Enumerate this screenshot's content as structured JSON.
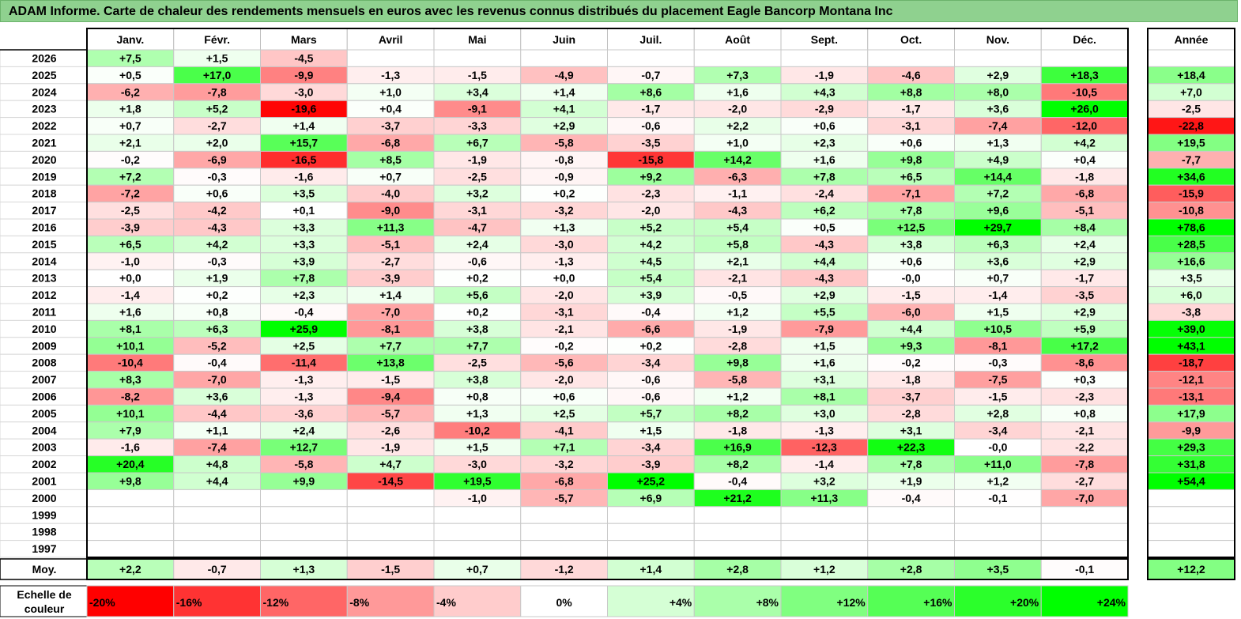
{
  "title": "ADAM Informe. Carte de chaleur des rendements mensuels en euros avec les revenus connus distribués du placement Eagle Bancorp Montana Inc",
  "colors": {
    "negative": "#ff0000",
    "neutral": "#ffffff",
    "positive": "#00ff00",
    "title_bg": "#8fd18f"
  },
  "chart_data": {
    "type": "heatmap",
    "title": "ADAM Informe. Carte de chaleur des rendements mensuels en euros avec les revenus connus distribués du placement Eagle Bancorp Montana Inc",
    "months": [
      "Janv.",
      "Févr.",
      "Mars",
      "Avril",
      "Mai",
      "Juin",
      "Juil.",
      "Août",
      "Sept.",
      "Oct.",
      "Nov.",
      "Déc."
    ],
    "year_header": "Année",
    "rows": [
      {
        "year": "2026",
        "values": [
          "+7,5",
          "+1,5",
          "-4,5",
          "",
          "",
          "",
          "",
          "",
          "",
          "",
          "",
          ""
        ],
        "annual": ""
      },
      {
        "year": "2025",
        "values": [
          "+0,5",
          "+17,0",
          "-9,9",
          "-1,3",
          "-1,5",
          "-4,9",
          "-0,7",
          "+7,3",
          "-1,9",
          "-4,6",
          "+2,9",
          "+18,3"
        ],
        "annual": "+18,4"
      },
      {
        "year": "2024",
        "values": [
          "-6,2",
          "-7,8",
          "-3,0",
          "+1,0",
          "+3,4",
          "+1,4",
          "+8,6",
          "+1,6",
          "+4,3",
          "+8,8",
          "+8,0",
          "-10,5"
        ],
        "annual": "+7,0"
      },
      {
        "year": "2023",
        "values": [
          "+1,8",
          "+5,2",
          "-19,6",
          "+0,4",
          "-9,1",
          "+4,1",
          "-1,7",
          "-2,0",
          "-2,9",
          "-1,7",
          "+3,6",
          "+26,0"
        ],
        "annual": "-2,5"
      },
      {
        "year": "2022",
        "values": [
          "+0,7",
          "-2,7",
          "+1,4",
          "-3,7",
          "-3,3",
          "+2,9",
          "-0,6",
          "+2,2",
          "+0,6",
          "-3,1",
          "-7,4",
          "-12,0"
        ],
        "annual": "-22,8"
      },
      {
        "year": "2021",
        "values": [
          "+2,1",
          "+2,0",
          "+15,7",
          "-6,8",
          "+6,7",
          "-5,8",
          "-3,5",
          "+1,0",
          "+2,3",
          "+0,6",
          "+1,3",
          "+4,2"
        ],
        "annual": "+19,5"
      },
      {
        "year": "2020",
        "values": [
          "-0,2",
          "-6,9",
          "-16,5",
          "+8,5",
          "-1,9",
          "-0,8",
          "-15,8",
          "+14,2",
          "+1,6",
          "+9,8",
          "+4,9",
          "+0,4"
        ],
        "annual": "-7,7"
      },
      {
        "year": "2019",
        "values": [
          "+7,2",
          "-0,3",
          "-1,6",
          "+0,7",
          "-2,5",
          "-0,9",
          "+9,2",
          "-6,3",
          "+7,8",
          "+6,5",
          "+14,4",
          "-1,8"
        ],
        "annual": "+34,6"
      },
      {
        "year": "2018",
        "values": [
          "-7,2",
          "+0,6",
          "+3,5",
          "-4,0",
          "+3,2",
          "+0,2",
          "-2,3",
          "-1,1",
          "-2,4",
          "-7,1",
          "+7,2",
          "-6,8"
        ],
        "annual": "-15,9"
      },
      {
        "year": "2017",
        "values": [
          "-2,5",
          "-4,2",
          "+0,1",
          "-9,0",
          "-3,1",
          "-3,2",
          "-2,0",
          "-4,3",
          "+6,2",
          "+7,8",
          "+9,6",
          "-5,1"
        ],
        "annual": "-10,8"
      },
      {
        "year": "2016",
        "values": [
          "-3,9",
          "-4,3",
          "+3,3",
          "+11,3",
          "-4,7",
          "+1,3",
          "+5,2",
          "+5,4",
          "+0,5",
          "+12,5",
          "+29,7",
          "+8,4"
        ],
        "annual": "+78,6"
      },
      {
        "year": "2015",
        "values": [
          "+6,5",
          "+4,2",
          "+3,3",
          "-5,1",
          "+2,4",
          "-3,0",
          "+4,2",
          "+5,8",
          "-4,3",
          "+3,8",
          "+6,3",
          "+2,4"
        ],
        "annual": "+28,5"
      },
      {
        "year": "2014",
        "values": [
          "-1,0",
          "-0,3",
          "+3,9",
          "-2,7",
          "-0,6",
          "-1,3",
          "+4,5",
          "+2,1",
          "+4,4",
          "+0,6",
          "+3,6",
          "+2,9"
        ],
        "annual": "+16,6"
      },
      {
        "year": "2013",
        "values": [
          "+0,0",
          "+1,9",
          "+7,8",
          "-3,9",
          "+0,2",
          "+0,0",
          "+5,4",
          "-2,1",
          "-4,3",
          "-0,0",
          "+0,7",
          "-1,7"
        ],
        "annual": "+3,5"
      },
      {
        "year": "2012",
        "values": [
          "-1,4",
          "+0,2",
          "+2,3",
          "+1,4",
          "+5,6",
          "-2,0",
          "+3,9",
          "-0,5",
          "+2,9",
          "-1,5",
          "-1,4",
          "-3,5"
        ],
        "annual": "+6,0"
      },
      {
        "year": "2011",
        "values": [
          "+1,6",
          "+0,8",
          "-0,4",
          "-7,0",
          "+0,2",
          "-3,1",
          "-0,4",
          "+1,2",
          "+5,5",
          "-6,0",
          "+1,5",
          "+2,9"
        ],
        "annual": "-3,8"
      },
      {
        "year": "2010",
        "values": [
          "+8,1",
          "+6,3",
          "+25,9",
          "-8,1",
          "+3,8",
          "-2,1",
          "-6,6",
          "-1,9",
          "-7,9",
          "+4,4",
          "+10,5",
          "+5,9"
        ],
        "annual": "+39,0"
      },
      {
        "year": "2009",
        "values": [
          "+10,1",
          "-5,2",
          "+2,5",
          "+7,7",
          "+7,7",
          "-0,2",
          "+0,2",
          "-2,8",
          "+1,5",
          "+9,3",
          "-8,1",
          "+17,2"
        ],
        "annual": "+43,1"
      },
      {
        "year": "2008",
        "values": [
          "-10,4",
          "-0,4",
          "-11,4",
          "+13,8",
          "-2,5",
          "-5,6",
          "-3,4",
          "+9,8",
          "+1,6",
          "-0,2",
          "-0,3",
          "-8,6"
        ],
        "annual": "-18,7"
      },
      {
        "year": "2007",
        "values": [
          "+8,3",
          "-7,0",
          "-1,3",
          "-1,5",
          "+3,8",
          "-2,0",
          "-0,6",
          "-5,8",
          "+3,1",
          "-1,8",
          "-7,5",
          "+0,3"
        ],
        "annual": "-12,1"
      },
      {
        "year": "2006",
        "values": [
          "-8,2",
          "+3,6",
          "-1,3",
          "-9,4",
          "+0,8",
          "+0,6",
          "-0,6",
          "+1,2",
          "+8,1",
          "-3,7",
          "-1,5",
          "-2,3"
        ],
        "annual": "-13,1"
      },
      {
        "year": "2005",
        "values": [
          "+10,1",
          "-4,4",
          "-3,6",
          "-5,7",
          "+1,3",
          "+2,5",
          "+5,7",
          "+8,2",
          "+3,0",
          "-2,8",
          "+2,8",
          "+0,8"
        ],
        "annual": "+17,9"
      },
      {
        "year": "2004",
        "values": [
          "+7,9",
          "+1,1",
          "+2,4",
          "-2,6",
          "-10,2",
          "-4,1",
          "+1,5",
          "-1,8",
          "-1,3",
          "+3,1",
          "-3,4",
          "-2,1"
        ],
        "annual": "-9,9"
      },
      {
        "year": "2003",
        "values": [
          "-1,6",
          "-7,4",
          "+12,7",
          "-1,9",
          "+1,5",
          "+7,1",
          "-3,4",
          "+16,9",
          "-12,3",
          "+22,3",
          "-0,0",
          "-2,2"
        ],
        "annual": "+29,3"
      },
      {
        "year": "2002",
        "values": [
          "+20,4",
          "+4,8",
          "-5,8",
          "+4,7",
          "-3,0",
          "-3,2",
          "-3,9",
          "+8,2",
          "-1,4",
          "+7,8",
          "+11,0",
          "-7,8"
        ],
        "annual": "+31,8"
      },
      {
        "year": "2001",
        "values": [
          "+9,8",
          "+4,4",
          "+9,9",
          "-14,5",
          "+19,5",
          "-6,8",
          "+25,2",
          "-0,4",
          "+3,2",
          "+1,9",
          "+1,2",
          "-2,7"
        ],
        "annual": "+54,4"
      },
      {
        "year": "2000",
        "values": [
          "",
          "",
          "",
          "",
          "-1,0",
          "-5,7",
          "+6,9",
          "+21,2",
          "+11,3",
          "-0,4",
          "-0,1",
          "-7,0"
        ],
        "annual": ""
      },
      {
        "year": "1999",
        "values": [
          "",
          "",
          "",
          "",
          "",
          "",
          "",
          "",
          "",
          "",
          "",
          ""
        ],
        "annual": ""
      },
      {
        "year": "1998",
        "values": [
          "",
          "",
          "",
          "",
          "",
          "",
          "",
          "",
          "",
          "",
          "",
          ""
        ],
        "annual": ""
      },
      {
        "year": "1997",
        "values": [
          "",
          "",
          "",
          "",
          "",
          "",
          "",
          "",
          "",
          "",
          "",
          ""
        ],
        "annual": ""
      }
    ],
    "average": {
      "label": "Moy.",
      "values": [
        "+2,2",
        "-0,7",
        "+1,3",
        "-1,5",
        "+0,7",
        "-1,2",
        "+1,4",
        "+2,8",
        "+1,2",
        "+2,8",
        "+3,5",
        "-0,1"
      ],
      "annual": "+12,2"
    },
    "scale": {
      "label_line1": "Echelle de",
      "label_line2": "couleur",
      "steps": [
        {
          "label": "-20%",
          "value": -20
        },
        {
          "label": "-16%",
          "value": -16
        },
        {
          "label": "-12%",
          "value": -12
        },
        {
          "label": "-8%",
          "value": -8
        },
        {
          "label": "-4%",
          "value": -4
        },
        {
          "label": "0%",
          "value": 0
        },
        {
          "label": "+4%",
          "value": 4
        },
        {
          "label": "+8%",
          "value": 8
        },
        {
          "label": "+12%",
          "value": 12
        },
        {
          "label": "+16%",
          "value": 16
        },
        {
          "label": "+20%",
          "value": 20
        },
        {
          "label": "+24%",
          "value": 24
        }
      ]
    }
  }
}
